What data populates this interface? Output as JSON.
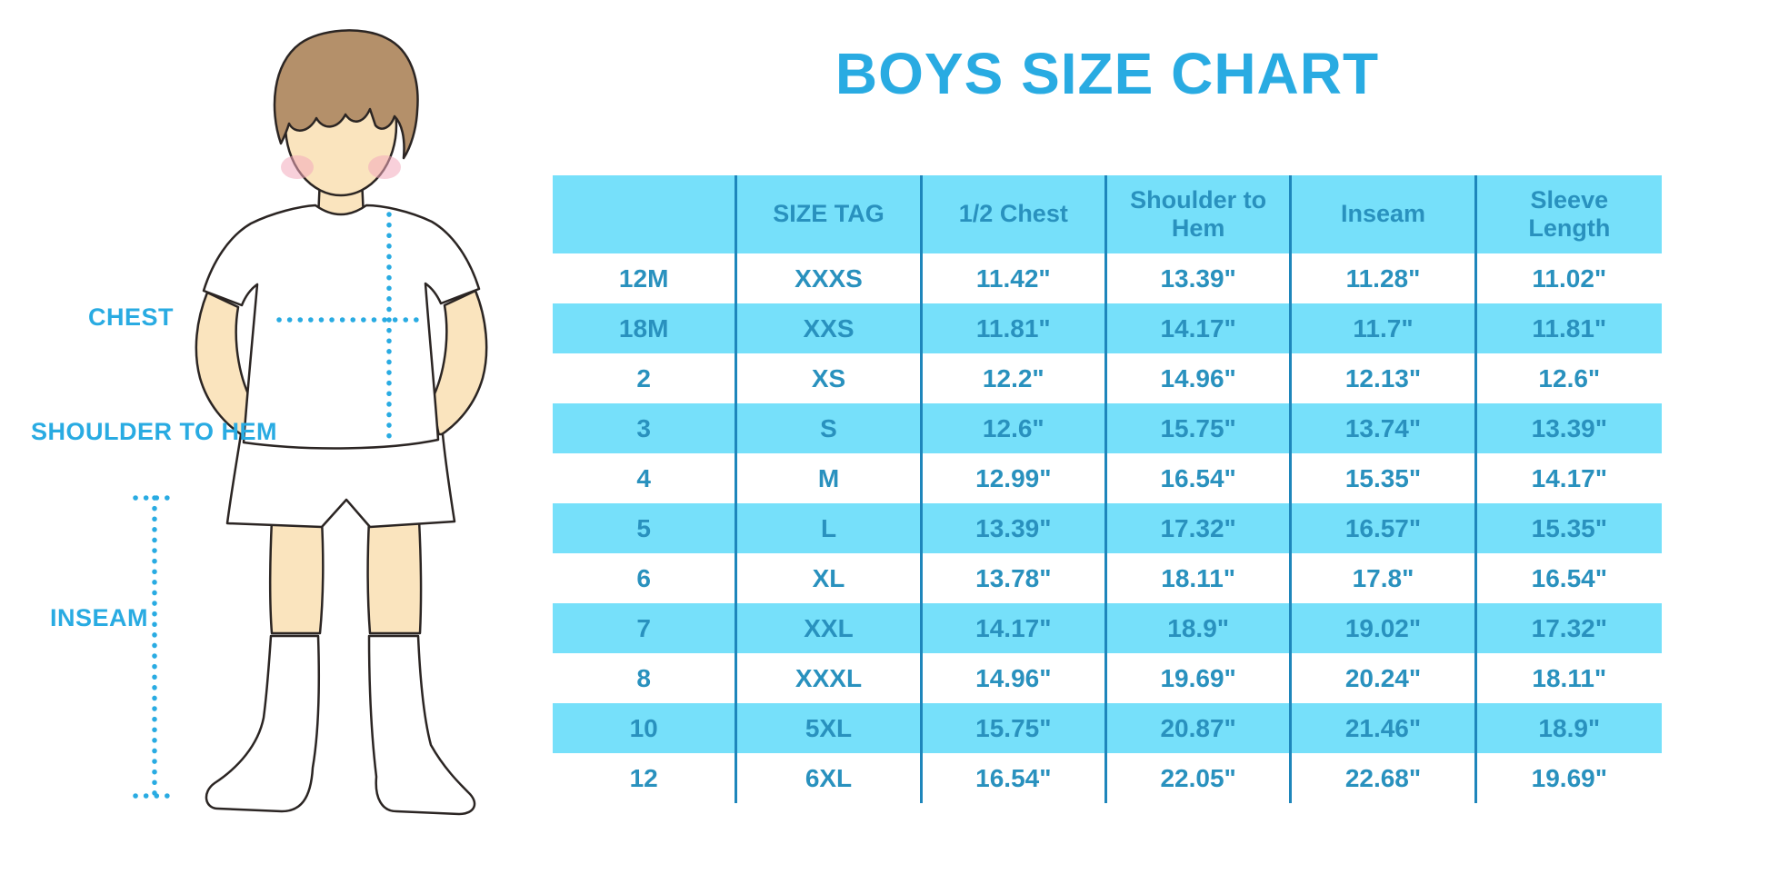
{
  "title": "BOYS SIZE CHART",
  "figure": {
    "description": "cartoon boy wearing white t-shirt, white shorts and white knee socks with measurement guides",
    "labels": {
      "chest": "CHEST",
      "shoulder_to_hem": "SHOULDER TO HEM",
      "inseam": "INSEAM"
    }
  },
  "colors": {
    "accent_blue": "#29ABE2",
    "table_text_blue": "#2991BE",
    "row_stripe_cyan": "#76E0FA",
    "divider_blue": "#1E86BB",
    "skin": "#FAE4BE",
    "hair_brown": "#B4906A",
    "blush_pink": "#F2A9BC",
    "outline": "#2B2523",
    "background": "#FFFFFF"
  },
  "chart_data": {
    "type": "table",
    "title": "BOYS SIZE CHART",
    "columns": [
      "",
      "SIZE TAG",
      "1/2 Chest",
      "Shoulder to Hem",
      "Inseam",
      "Sleeve Length"
    ],
    "rows": [
      [
        "12M",
        "XXXS",
        "11.42\"",
        "13.39\"",
        "11.28\"",
        "11.02\""
      ],
      [
        "18M",
        "XXS",
        "11.81\"",
        "14.17\"",
        "11.7\"",
        "11.81\""
      ],
      [
        "2",
        "XS",
        "12.2\"",
        "14.96\"",
        "12.13\"",
        "12.6\""
      ],
      [
        "3",
        "S",
        "12.6\"",
        "15.75\"",
        "13.74\"",
        "13.39\""
      ],
      [
        "4",
        "M",
        "12.99\"",
        "16.54\"",
        "15.35\"",
        "14.17\""
      ],
      [
        "5",
        "L",
        "13.39\"",
        "17.32\"",
        "16.57\"",
        "15.35\""
      ],
      [
        "6",
        "XL",
        "13.78\"",
        "18.11\"",
        "17.8\"",
        "16.54\""
      ],
      [
        "7",
        "XXL",
        "14.17\"",
        "18.9\"",
        "19.02\"",
        "17.32\""
      ],
      [
        "8",
        "XXXL",
        "14.96\"",
        "19.69\"",
        "20.24\"",
        "18.11\""
      ],
      [
        "10",
        "5XL",
        "15.75\"",
        "20.87\"",
        "21.46\"",
        "18.9\""
      ],
      [
        "12",
        "6XL",
        "16.54\"",
        "22.05\"",
        "22.68\"",
        "19.69\""
      ]
    ]
  }
}
